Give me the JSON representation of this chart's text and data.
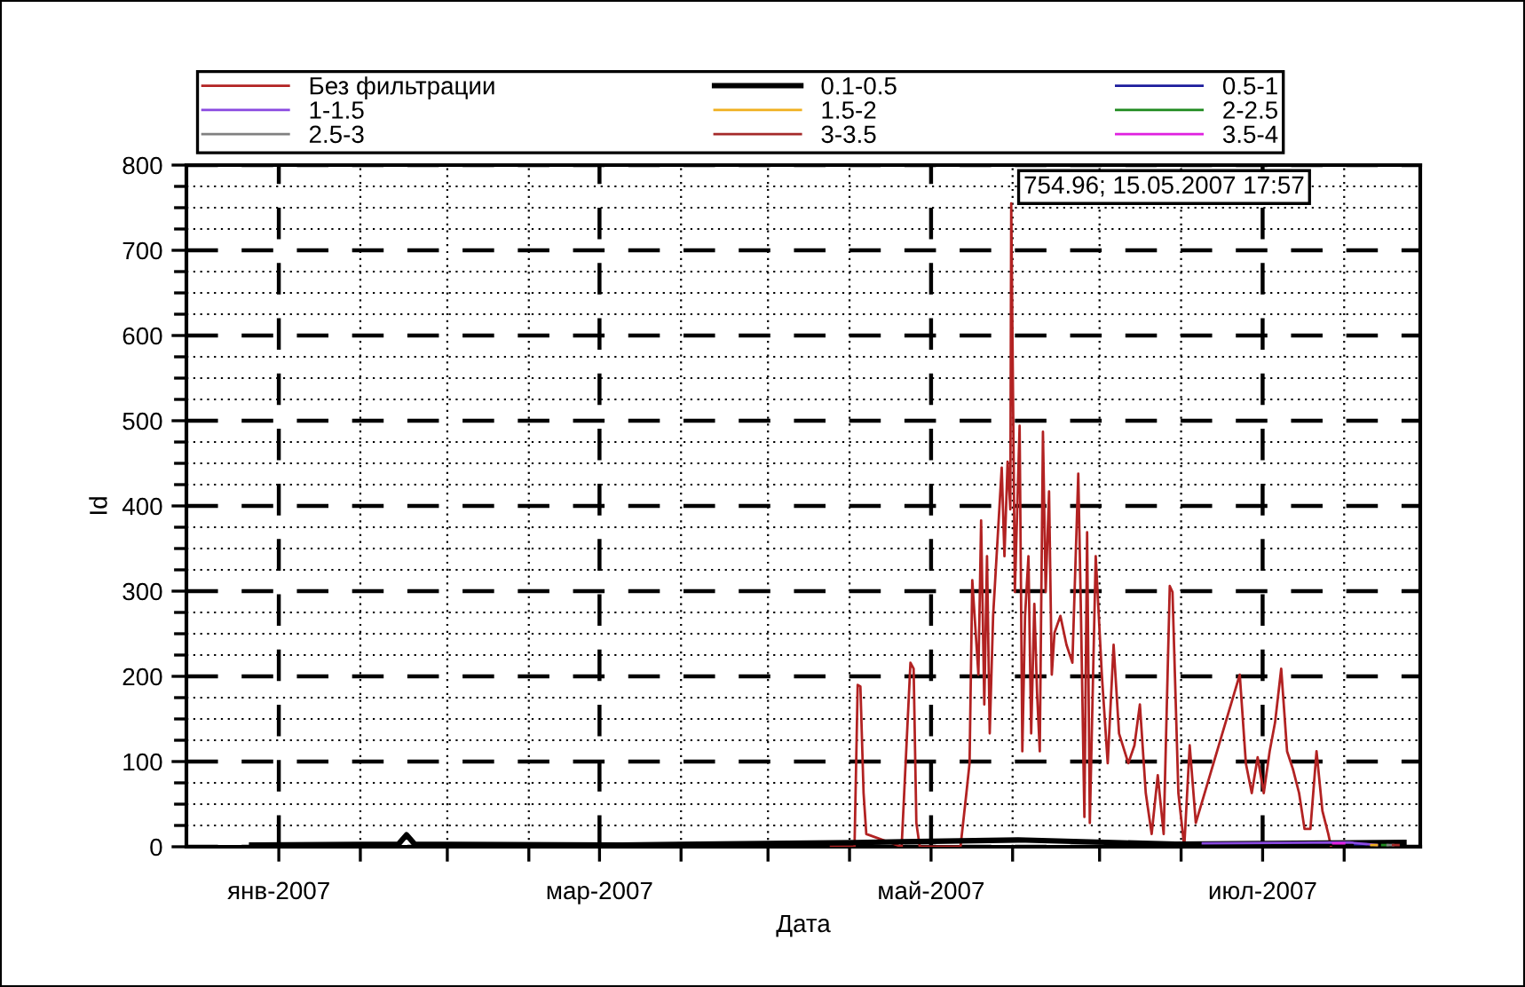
{
  "chart_data": {
    "type": "line",
    "xlabel": "Дата",
    "ylabel": "Id",
    "xlim": [
      "2006-12-15",
      "2007-07-30"
    ],
    "xticks": [
      {
        "value": "2007-01-01",
        "label": "янв-2007"
      },
      {
        "value": "2007-01-16",
        "label": null
      },
      {
        "value": "2007-02-01",
        "label": null
      },
      {
        "value": "2007-02-16",
        "label": null
      },
      {
        "value": "2007-03-01",
        "label": "мар-2007"
      },
      {
        "value": "2007-03-16",
        "label": null
      },
      {
        "value": "2007-04-01",
        "label": null
      },
      {
        "value": "2007-04-16",
        "label": null
      },
      {
        "value": "2007-05-01",
        "label": "май-2007"
      },
      {
        "value": "2007-05-16",
        "label": null
      },
      {
        "value": "2007-06-01",
        "label": null
      },
      {
        "value": "2007-06-16",
        "label": null
      },
      {
        "value": "2007-07-01",
        "label": "июл-2007"
      },
      {
        "value": "2007-07-16",
        "label": null
      }
    ],
    "ylim": [
      0,
      800
    ],
    "yticks": [
      0,
      {
        "value": 25,
        "label": null
      },
      {
        "value": 50,
        "label": null
      },
      {
        "value": 75,
        "label": null
      },
      100,
      {
        "value": 125,
        "label": null
      },
      {
        "value": 150,
        "label": null
      },
      {
        "value": 175,
        "label": null
      },
      200,
      {
        "value": 225,
        "label": null
      },
      {
        "value": 250,
        "label": null
      },
      {
        "value": 275,
        "label": null
      },
      300,
      {
        "value": 325,
        "label": null
      },
      {
        "value": 350,
        "label": null
      },
      {
        "value": 375,
        "label": null
      },
      400,
      {
        "value": 425,
        "label": null
      },
      {
        "value": 450,
        "label": null
      },
      {
        "value": 475,
        "label": null
      },
      500,
      {
        "value": 525,
        "label": null
      },
      {
        "value": 550,
        "label": null
      },
      {
        "value": 575,
        "label": null
      },
      600,
      {
        "value": 625,
        "label": null
      },
      {
        "value": 650,
        "label": null
      },
      {
        "value": 675,
        "label": null
      },
      700,
      {
        "value": 725,
        "label": null
      },
      {
        "value": 750,
        "label": null
      },
      {
        "value": 775,
        "label": null
      },
      800
    ],
    "grid": true,
    "legend": "top",
    "marker": "none",
    "line_style": "solid",
    "annotations": [
      {
        "text": "754.96; 15.05.2007 17:57",
        "x": "2007-05-15T17:57",
        "y": 754.96
      }
    ],
    "series": [
      {
        "name": "Без фильтрации",
        "color": "#b22222",
        "x": [
          "2007-04-12T14:00",
          "2007-04-16T22:00",
          "2007-04-17T12:00",
          "2007-04-18T00:00",
          "2007-04-18T14:00",
          "2007-04-19T02:00",
          "2007-04-25T14:00",
          "2007-04-27T05:00",
          "2007-04-27T19:00",
          "2007-04-28T07:00",
          "2007-04-28T22:00",
          "2007-05-06T10:00",
          "2007-05-07T12:00",
          "2007-05-08T02:00",
          "2007-05-08T14:00",
          "2007-05-09T17:00",
          "2007-05-10T05:00",
          "2007-05-10T19:00",
          "2007-05-11T07:00",
          "2007-05-11T19:00",
          "2007-05-12T10:00",
          "2007-05-14T00:00",
          "2007-05-14T12:00",
          "2007-05-15T02:00",
          "2007-05-15T14:00",
          "2007-05-15T17:57",
          "2007-05-16T10:00",
          "2007-05-17T07:00",
          "2007-05-17T19:00",
          "2007-05-18T07:00",
          "2007-05-18T22:00",
          "2007-05-19T10:00",
          "2007-05-20T00:00",
          "2007-05-20T12:00",
          "2007-05-21T00:00",
          "2007-05-21T14:00",
          "2007-05-22T02:00",
          "2007-05-22T17:00",
          "2007-05-23T05:00",
          "2007-05-23T17:00",
          "2007-05-24T19:00",
          "2007-05-25T22:00",
          "2007-05-27T00:00",
          "2007-05-28T02:00",
          "2007-05-28T14:00",
          "2007-05-29T05:00",
          "2007-05-29T17:00",
          "2007-05-30T05:00",
          "2007-05-31T07:00",
          "2007-06-01T10:00",
          "2007-06-02T12:00",
          "2007-06-03T14:00",
          "2007-06-04T14:00",
          "2007-06-06T07:00",
          "2007-06-07T10:00",
          "2007-06-08T10:00",
          "2007-06-09T12:00",
          "2007-06-10T14:00",
          "2007-06-11T17:00",
          "2007-06-12T19:00",
          "2007-06-13T22:00",
          "2007-06-14T10:00",
          "2007-06-15T12:00",
          "2007-06-16T14:00",
          "2007-06-17T14:00",
          "2007-06-18T17:00",
          "2007-06-26T19:00",
          "2007-06-27T22:00",
          "2007-06-29T00:00",
          "2007-06-30T02:00",
          "2007-07-01T05:00",
          "2007-07-02T07:00",
          "2007-07-03T07:00",
          "2007-07-04T10:00",
          "2007-07-05T12:00",
          "2007-07-06T14:00",
          "2007-07-07T17:00",
          "2007-07-08T17:00",
          "2007-07-09T19:00",
          "2007-07-10T22:00",
          "2007-07-12T00:00",
          "2007-07-13T02:00",
          "2007-07-13T14:00"
        ],
        "values": [
          0,
          0,
          190,
          188,
          63,
          15,
          0,
          216,
          209,
          28,
          0,
          0,
          63,
          98,
          313,
          202,
          383,
          167,
          341,
          133,
          271,
          445,
          341,
          452,
          396,
          754.96,
          299,
          494,
          112,
          271,
          341,
          133,
          285,
          181,
          112,
          487,
          299,
          417,
          202,
          251,
          271,
          237,
          216,
          438,
          271,
          35,
          369,
          28,
          341,
          202,
          98,
          237,
          133,
          98,
          119,
          167,
          63,
          15,
          84,
          15,
          306,
          299,
          63,
          0,
          119,
          28,
          202,
          98,
          63,
          105,
          63,
          112,
          146,
          209,
          112,
          91,
          63,
          21,
          21,
          112,
          42,
          15,
          0
        ]
      },
      {
        "name": "0.1-0.5",
        "color": "#000000",
        "x": [
          "2006-12-27",
          "2007-01-23",
          "2007-01-24T12:00",
          "2007-01-26",
          "2007-03-05",
          "2007-04-17",
          "2007-05-17",
          "2007-06-15",
          "2007-07-27"
        ],
        "values": [
          2,
          3,
          14,
          3,
          2,
          5,
          8,
          3,
          5
        ]
      },
      {
        "name": "0.5-1",
        "color": "#1c1c9c",
        "x": [
          "2007-07-18",
          "2007-07-20"
        ],
        "values": [
          3,
          3
        ]
      },
      {
        "name": "1-1.5",
        "color": "#8a4ae0",
        "x": [
          "2007-06-20",
          "2007-07-17",
          "2007-07-22"
        ],
        "values": [
          4,
          5,
          2
        ]
      },
      {
        "name": "1.5-2",
        "color": "#f0b020",
        "x": [
          "2007-07-21",
          "2007-07-22"
        ],
        "values": [
          2,
          2
        ]
      },
      {
        "name": "2-2.5",
        "color": "#1f8a1f",
        "x": [
          "2007-07-23",
          "2007-07-24"
        ],
        "values": [
          2,
          2
        ]
      },
      {
        "name": "2.5-3",
        "color": "#808080",
        "x": [
          "2007-07-24",
          "2007-07-25"
        ],
        "values": [
          2,
          2
        ]
      },
      {
        "name": "3-3.5",
        "color": "#a52a2a",
        "x": [
          "2007-07-25",
          "2007-07-26"
        ],
        "values": [
          2,
          2
        ]
      },
      {
        "name": "3.5-4",
        "color": "#e020e0",
        "x": [
          "2007-07-14",
          "2007-07-16"
        ],
        "values": [
          4,
          4
        ]
      }
    ]
  }
}
